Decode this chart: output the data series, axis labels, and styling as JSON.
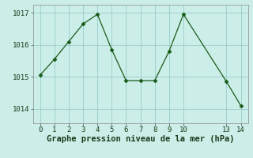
{
  "x": [
    0,
    1,
    2,
    3,
    4,
    5,
    6,
    7,
    8,
    9,
    10,
    13,
    14
  ],
  "y": [
    1015.05,
    1015.55,
    1016.1,
    1016.65,
    1016.95,
    1015.85,
    1014.88,
    1014.88,
    1014.88,
    1015.8,
    1016.95,
    1014.85,
    1014.1
  ],
  "line_color": "#1a5c1a",
  "marker_color": "#1a5c1a",
  "bg_color": "#cceee8",
  "grid_color": "#99cccc",
  "xlabel": "Graphe pression niveau de la mer (hPa)",
  "xticks": [
    0,
    1,
    2,
    3,
    4,
    5,
    6,
    7,
    8,
    9,
    10,
    13,
    14
  ],
  "yticks": [
    1014,
    1015,
    1016,
    1017
  ],
  "ylim": [
    1013.55,
    1017.25
  ],
  "xlim": [
    -0.5,
    14.5
  ],
  "tick_fontsize": 6.5,
  "xlabel_fontsize": 7.5
}
